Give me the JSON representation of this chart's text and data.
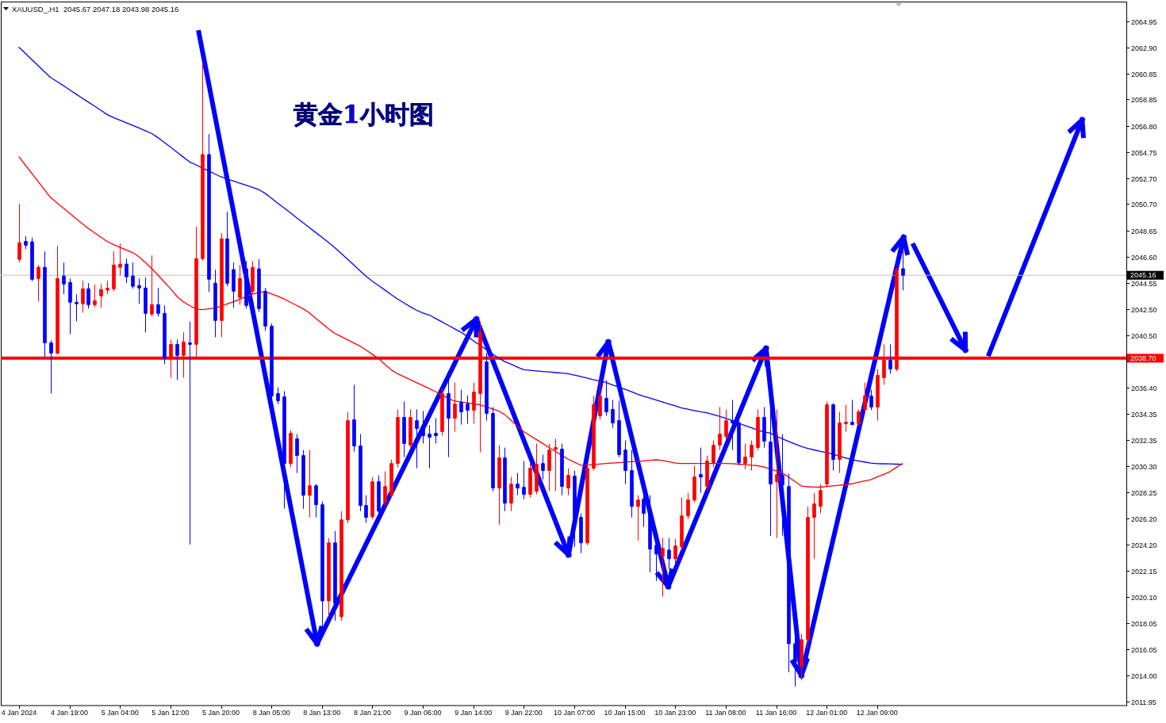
{
  "chart_data": {
    "type": "candlestick",
    "title": "黄金1小时图",
    "subtitle": "XAUUSD_,H1  2045.67 2047.18 2043.98 2045.16",
    "categories": [
      "4 Jan 2024",
      null,
      null,
      null,
      null,
      null,
      null,
      null,
      "4 Jan 19:00",
      null,
      null,
      null,
      null,
      null,
      null,
      null,
      "5 Jan 04:00",
      null,
      null,
      null,
      null,
      null,
      null,
      null,
      "5 Jan 12:00",
      null,
      null,
      null,
      null,
      null,
      null,
      null,
      "5 Jan 20:00",
      null,
      null,
      null,
      null,
      null,
      null,
      null,
      "8 Jan 05:00",
      null,
      null,
      null,
      null,
      null,
      null,
      null,
      "8 Jan 13:00",
      null,
      null,
      null,
      null,
      null,
      null,
      null,
      "8 Jan 21:00",
      null,
      null,
      null,
      null,
      null,
      null,
      null,
      "9 Jan 06:00",
      null,
      null,
      null,
      null,
      null,
      null,
      null,
      "9 Jan 14:00",
      null,
      null,
      null,
      null,
      null,
      null,
      null,
      "9 Jan 22:00",
      null,
      null,
      null,
      null,
      null,
      null,
      null,
      "10 Jan 07:00",
      null,
      null,
      null,
      null,
      null,
      null,
      null,
      "10 Jan 15:00",
      null,
      null,
      null,
      null,
      null,
      null,
      null,
      "10 Jan 23:00",
      null,
      null,
      null,
      null,
      null,
      null,
      null,
      "11 Jan 08:00",
      null,
      null,
      null,
      null,
      null,
      null,
      null,
      "11 Jan 16:00",
      null,
      null,
      null,
      null,
      null,
      null,
      null,
      "12 Jan 01:00",
      null,
      null,
      null,
      null,
      null,
      null,
      null,
      "12 Jan 09:00",
      null,
      null,
      null,
      null
    ],
    "ohlc": [
      [
        2046.4,
        2050.73,
        2046.15,
        2047.7
      ],
      [
        2047.8,
        2048.2,
        2047.2,
        2047.5
      ],
      [
        2047.76,
        2048.1,
        2044.7,
        2044.85
      ],
      [
        2044.91,
        2045.96,
        2043.12,
        2045.78
      ],
      [
        2045.78,
        2047.02,
        2038.73,
        2039.9
      ],
      [
        2039.9,
        2040.09,
        2035.95,
        2039.1
      ],
      [
        2039.1,
        2047.45,
        2038.98,
        2044.91
      ],
      [
        2045.1,
        2046.15,
        2043.68,
        2044.48
      ],
      [
        2044.6,
        2044.91,
        2040.58,
        2043.06
      ],
      [
        2043.06,
        2043.68,
        2041.57,
        2042.94
      ],
      [
        2042.94,
        2044.73,
        2042.25,
        2044.11
      ],
      [
        2044.11,
        2044.55,
        2042.56,
        2042.87
      ],
      [
        2042.87,
        2044.42,
        2042.69,
        2043.18
      ],
      [
        2043.55,
        2044.48,
        2042.62,
        2044.05
      ],
      [
        2044.0,
        2044.73,
        2043.68,
        2044.15
      ],
      [
        2044.11,
        2047.02,
        2043.92,
        2045.96
      ],
      [
        2045.78,
        2047.63,
        2045.16,
        2046.03
      ],
      [
        2046.03,
        2046.46,
        2044.55,
        2045.04
      ],
      [
        2045.1,
        2046.15,
        2044.11,
        2044.3
      ],
      [
        2044.36,
        2044.91,
        2042.94,
        2044.17
      ],
      [
        2044.17,
        2044.98,
        2040.71,
        2042.19
      ],
      [
        2042.13,
        2046.71,
        2041.95,
        2042.87
      ],
      [
        2042.87,
        2044.17,
        2041.95,
        2042.19
      ],
      [
        2042.19,
        2042.81,
        2038.23,
        2038.73
      ],
      [
        2038.73,
        2040.15,
        2037.18,
        2039.78
      ],
      [
        2039.78,
        2040.15,
        2037.0,
        2038.92
      ],
      [
        2038.92,
        2040.71,
        2037.18,
        2039.97
      ],
      [
        2039.9,
        2041.57,
        2024.19,
        2039.78
      ],
      [
        2039.78,
        2048.93,
        2038.73,
        2046.46
      ],
      [
        2046.46,
        2061.73,
        2046.3,
        2054.56
      ],
      [
        2054.56,
        2056.17,
        2043.86,
        2044.85
      ],
      [
        2044.54,
        2045.6,
        2040.34,
        2041.64
      ],
      [
        2041.64,
        2048.44,
        2040.34,
        2048.0
      ],
      [
        2048.0,
        2050.11,
        2044.3,
        2044.54
      ],
      [
        2045.6,
        2046.15,
        2042.62,
        2043.92
      ],
      [
        2043.43,
        2045.96,
        2042.87,
        2044.91
      ],
      [
        2045.66,
        2046.27,
        2042.56,
        2042.81
      ],
      [
        2043.92,
        2046.27,
        2043.68,
        2045.78
      ],
      [
        2045.66,
        2046.4,
        2042.3,
        2042.56
      ],
      [
        2043.92,
        2044.17,
        2040.83,
        2041.2
      ],
      [
        2041.2,
        2041.4,
        2035.45,
        2035.76
      ],
      [
        2035.95,
        2036.44,
        2035.14,
        2035.39
      ],
      [
        2035.7,
        2036.13,
        2026.98,
        2030.5
      ],
      [
        2030.5,
        2033.1,
        2030.2,
        2032.85
      ],
      [
        2032.42,
        2032.79,
        2029.76,
        2031.12
      ],
      [
        2031.12,
        2031.55,
        2026.98,
        2028.03
      ],
      [
        2028.03,
        2031.55,
        2026.3,
        2028.77
      ],
      [
        2028.77,
        2028.9,
        2026.3,
        2027.29
      ],
      [
        2027.29,
        2027.54,
        2017.83,
        2019.8
      ],
      [
        2019.8,
        2024.69,
        2018.57,
        2024.32
      ],
      [
        2024.32,
        2025.25,
        2018.26,
        2019.62
      ],
      [
        2018.57,
        2026.79,
        2018.26,
        2026.11
      ],
      [
        2026.11,
        2034.52,
        2025.86,
        2033.84
      ],
      [
        2033.91,
        2036.63,
        2031.43,
        2031.87
      ],
      [
        2031.87,
        2032.79,
        2026.79,
        2027.23
      ],
      [
        2027.23,
        2028.03,
        2025.86,
        2026.3
      ],
      [
        2026.36,
        2029.45,
        2026.17,
        2029.08
      ],
      [
        2029.08,
        2029.58,
        2026.48,
        2026.79
      ],
      [
        2027.47,
        2029.89,
        2027.1,
        2028.71
      ],
      [
        2028.03,
        2030.8,
        2027.85,
        2030.5
      ],
      [
        2030.5,
        2034.71,
        2030.2,
        2034.09
      ],
      [
        2034.09,
        2035.33,
        2031.0,
        2032.05
      ],
      [
        2031.93,
        2034.71,
        2031.74,
        2034.09
      ],
      [
        2033.84,
        2034.71,
        2030.13,
        2033.22
      ],
      [
        2033.22,
        2034.6,
        2032.05,
        2032.67
      ],
      [
        2032.79,
        2033.47,
        2030.13,
        2032.55
      ],
      [
        2032.85,
        2034.03,
        2032.05,
        2032.67
      ],
      [
        2032.98,
        2036.38,
        2032.67,
        2035.95
      ],
      [
        2035.95,
        2037.18,
        2031.0,
        2034.03
      ],
      [
        2034.03,
        2036.81,
        2032.98,
        2035.14
      ],
      [
        2035.26,
        2036.25,
        2033.53,
        2034.52
      ],
      [
        2035.14,
        2035.8,
        2033.6,
        2034.65
      ],
      [
        2034.65,
        2036.81,
        2033.6,
        2036.07
      ],
      [
        2035.95,
        2041.57,
        2031.37,
        2040.71
      ],
      [
        2038.42,
        2039.1,
        2033.84,
        2034.4
      ],
      [
        2034.4,
        2034.9,
        2028.34,
        2028.59
      ],
      [
        2028.59,
        2031.93,
        2025.74,
        2030.94
      ],
      [
        2030.94,
        2031.74,
        2026.79,
        2027.41
      ],
      [
        2027.41,
        2029.45,
        2026.79,
        2028.9
      ],
      [
        2028.9,
        2029.76,
        2028.03,
        2028.59
      ],
      [
        2028.65,
        2030.69,
        2027.72,
        2028.1
      ],
      [
        2028.1,
        2030.5,
        2027.85,
        2030.13
      ],
      [
        2028.34,
        2032.05,
        2028.1,
        2030.44
      ],
      [
        2030.5,
        2031.19,
        2029.27,
        2029.95
      ],
      [
        2029.95,
        2032.05,
        2028.34,
        2031.55
      ],
      [
        2031.6,
        2032.42,
        2028.34,
        2031.74
      ],
      [
        2031.62,
        2032.05,
        2028.03,
        2028.71
      ],
      [
        2028.59,
        2030.13,
        2028.03,
        2029.58
      ],
      [
        2029.51,
        2029.95,
        2024.01,
        2026.3
      ],
      [
        2026.3,
        2026.61,
        2023.52,
        2024.32
      ],
      [
        2024.32,
        2030.5,
        2024.14,
        2030.13
      ],
      [
        2030.13,
        2035.76,
        2029.95,
        2035.08
      ],
      [
        2034.21,
        2037.0,
        2033.91,
        2035.76
      ],
      [
        2035.58,
        2037.0,
        2034.21,
        2034.52
      ],
      [
        2034.71,
        2035.45,
        2033.28,
        2033.66
      ],
      [
        2033.84,
        2035.39,
        2031.0,
        2031.19
      ],
      [
        2031.55,
        2032.3,
        2028.9,
        2029.95
      ],
      [
        2029.95,
        2031.55,
        2026.3,
        2027.16
      ],
      [
        2027.16,
        2028.03,
        2024.5,
        2027.66
      ],
      [
        2027.72,
        2029.45,
        2025.56,
        2026.61
      ],
      [
        2026.61,
        2028.03,
        2022.03,
        2023.83
      ],
      [
        2024.13,
        2024.88,
        2021.35,
        2023.45
      ],
      [
        2023.27,
        2024.69,
        2020.13,
        2023.89
      ],
      [
        2023.76,
        2024.69,
        2022.28,
        2023.08
      ],
      [
        2023.08,
        2024.63,
        2022.65,
        2024.07
      ],
      [
        2024.01,
        2027.85,
        2023.76,
        2026.42
      ],
      [
        2026.42,
        2028.22,
        2026.17,
        2027.66
      ],
      [
        2027.66,
        2030.32,
        2027.47,
        2029.45
      ],
      [
        2029.64,
        2031.74,
        2028.22,
        2029.45
      ],
      [
        2028.71,
        2031.12,
        2028.34,
        2030.69
      ],
      [
        2030.56,
        2032.3,
        2030.2,
        2031.93
      ],
      [
        2031.93,
        2034.9,
        2031.55,
        2032.79
      ],
      [
        2032.61,
        2034.71,
        2032.36,
        2033.84
      ],
      [
        2033.84,
        2035.45,
        2031.55,
        2033.66
      ],
      [
        2033.66,
        2034.03,
        2030.38,
        2030.56
      ],
      [
        2030.5,
        2032.05,
        2030.07,
        2031.0
      ],
      [
        2031.0,
        2032.3,
        2029.95,
        2031.93
      ],
      [
        2031.74,
        2034.71,
        2031.55,
        2034.09
      ],
      [
        2034.09,
        2034.9,
        2031.74,
        2032.24
      ],
      [
        2032.18,
        2034.9,
        2024.88,
        2028.9
      ],
      [
        2029.08,
        2034.71,
        2024.69,
        2029.64
      ],
      [
        2029.58,
        2032.79,
        2024.88,
        2028.84
      ],
      [
        2028.71,
        2029.7,
        2014.24,
        2016.47
      ],
      [
        2016.47,
        2017.52,
        2013.13,
        2015.04
      ],
      [
        2014.67,
        2017.21,
        2013.62,
        2016.78
      ],
      [
        2016.78,
        2027.16,
        2016.09,
        2026.3
      ],
      [
        2026.3,
        2028.22,
        2023.08,
        2027.35
      ],
      [
        2027.16,
        2028.9,
        2026.61,
        2028.4
      ],
      [
        2028.9,
        2035.33,
        2028.65,
        2035.08
      ],
      [
        2035.08,
        2035.2,
        2029.95,
        2030.81
      ],
      [
        2030.81,
        2034.52,
        2029.76,
        2033.66
      ],
      [
        2033.6,
        2035.08,
        2032.98,
        2033.72
      ],
      [
        2033.72,
        2035.45,
        2033.47,
        2033.53
      ],
      [
        2033.6,
        2034.71,
        2033.41,
        2034.52
      ],
      [
        2034.71,
        2036.81,
        2034.52,
        2035.76
      ],
      [
        2035.76,
        2036.25,
        2034.65,
        2034.9
      ],
      [
        2034.9,
        2037.86,
        2033.84,
        2037.37
      ],
      [
        2037.18,
        2039.78,
        2036.63,
        2038.54
      ],
      [
        2038.54,
        2039.78,
        2037.49,
        2037.86
      ],
      [
        2037.86,
        2045.78,
        2037.68,
        2045.6
      ],
      [
        2045.67,
        2047.18,
        2043.98,
        2045.16
      ]
    ],
    "colors": [
      "#ff0000",
      "#0000ff",
      "#0000ff",
      "#ff0000",
      "#0000ff",
      "#0000ff",
      "#ff0000",
      "#0000ff",
      "#0000ff",
      "#0000ff",
      "#ff0000",
      "#0000ff",
      "#ff0000",
      "#ff0000",
      "#ff0000",
      "#ff0000",
      "#ff0000",
      "#0000ff",
      "#0000ff",
      "#0000ff",
      "#0000ff",
      "#ff0000",
      "#0000ff",
      "#0000ff",
      "#ff0000",
      "#0000ff",
      "#ff0000",
      "#0000ff",
      "#ff0000",
      "#ff0000",
      "#0000ff",
      "#0000ff",
      "#ff0000",
      "#0000ff",
      "#0000ff",
      "#ff0000",
      "#0000ff",
      "#ff0000",
      "#0000ff",
      "#0000ff",
      "#0000ff",
      "#0000ff",
      "#0000ff",
      "#ff0000",
      "#0000ff",
      "#0000ff",
      "#ff0000",
      "#0000ff",
      "#0000ff",
      "#ff0000",
      "#0000ff",
      "#ff0000",
      "#ff0000",
      "#0000ff",
      "#0000ff",
      "#0000ff",
      "#ff0000",
      "#0000ff",
      "#ff0000",
      "#ff0000",
      "#ff0000",
      "#0000ff",
      "#ff0000",
      "#0000ff",
      "#0000ff",
      "#0000ff",
      "#0000ff",
      "#ff0000",
      "#0000ff",
      "#ff0000",
      "#0000ff",
      "#0000ff",
      "#ff0000",
      "#ff0000",
      "#0000ff",
      "#0000ff",
      "#ff0000",
      "#0000ff",
      "#ff0000",
      "#0000ff",
      "#0000ff",
      "#ff0000",
      "#ff0000",
      "#0000ff",
      "#ff0000",
      "#ff0000",
      "#0000ff",
      "#ff0000",
      "#0000ff",
      "#0000ff",
      "#ff0000",
      "#ff0000",
      "#ff0000",
      "#0000ff",
      "#0000ff",
      "#0000ff",
      "#0000ff",
      "#0000ff",
      "#ff0000",
      "#0000ff",
      "#0000ff",
      "#0000ff",
      "#ff0000",
      "#0000ff",
      "#ff0000",
      "#ff0000",
      "#ff0000",
      "#ff0000",
      "#0000ff",
      "#ff0000",
      "#ff0000",
      "#ff0000",
      "#ff0000",
      "#0000ff",
      "#0000ff",
      "#ff0000",
      "#ff0000",
      "#ff0000",
      "#0000ff",
      "#0000ff",
      "#ff0000",
      "#0000ff",
      "#0000ff",
      "#0000ff",
      "#ff0000",
      "#ff0000",
      "#ff0000",
      "#ff0000",
      "#ff0000",
      "#0000ff",
      "#ff0000",
      "#ff0000",
      "#0000ff",
      "#ff0000",
      "#ff0000",
      "#0000ff",
      "#ff0000",
      "#ff0000",
      "#0000ff",
      "#ff0000",
      "#0000ff"
    ],
    "series": [
      {
        "type": "line",
        "color": "#0000ff",
        "values": [
          2062.91,
          2062.44,
          2061.97,
          2061.5,
          2061.03,
          2060.56,
          2060.25,
          2059.94,
          2059.61,
          2059.29,
          2058.96,
          2058.64,
          2058.32,
          2058.0,
          2057.67,
          2057.44,
          2057.23,
          2057.03,
          2056.83,
          2056.63,
          2056.42,
          2056.21,
          2055.88,
          2055.51,
          2055.14,
          2054.76,
          2054.38,
          2054.0,
          2053.77,
          2053.53,
          2053.3,
          2053.06,
          2052.83,
          2052.66,
          2052.5,
          2052.33,
          2052.17,
          2052.01,
          2051.84,
          2051.54,
          2051.16,
          2050.78,
          2050.4,
          2050.03,
          2049.64,
          2049.26,
          2048.88,
          2048.5,
          2048.12,
          2047.73,
          2047.34,
          2046.89,
          2046.44,
          2045.99,
          2045.53,
          2045.08,
          2044.7,
          2044.36,
          2044.01,
          2043.65,
          2043.31,
          2043.01,
          2042.71,
          2042.44,
          2042.22,
          2042.07,
          2041.8,
          2041.54,
          2041.27,
          2041.0,
          2040.74,
          2040.41,
          2040.07,
          2039.73,
          2039.39,
          2039.05,
          2038.71,
          2038.44,
          2038.23,
          2038.01,
          2037.8,
          2037.76,
          2037.71,
          2037.67,
          2037.63,
          2037.58,
          2037.54,
          2037.49,
          2037.39,
          2037.28,
          2037.16,
          2037.03,
          2036.92,
          2036.81,
          2036.63,
          2036.46,
          2036.29,
          2036.11,
          2035.91,
          2035.74,
          2035.59,
          2035.44,
          2035.29,
          2035.14,
          2034.99,
          2034.83,
          2034.73,
          2034.63,
          2034.53,
          2034.45,
          2034.31,
          2034.17,
          2034.02,
          2033.85,
          2033.66,
          2033.47,
          2033.3,
          2033.13,
          2032.96,
          2032.88,
          2032.64,
          2032.42,
          2032.22,
          2032.02,
          2031.83,
          2031.67,
          2031.56,
          2031.45,
          2031.35,
          2031.23,
          2031.08,
          2030.93,
          2030.79,
          2030.7,
          2030.62,
          2030.53,
          2030.49,
          2030.48,
          2030.47,
          2030.45,
          2030.44
        ]
      },
      {
        "type": "line",
        "color": "#ff0000",
        "values": [
          2054.38,
          2053.74,
          2053.11,
          2052.48,
          2051.85,
          2051.22,
          2050.81,
          2050.4,
          2050.0,
          2049.59,
          2049.19,
          2048.8,
          2048.46,
          2048.12,
          2047.78,
          2047.54,
          2047.34,
          2047.13,
          2046.93,
          2046.61,
          2046.16,
          2045.7,
          2045.19,
          2044.65,
          2044.12,
          2043.54,
          2043.11,
          2042.81,
          2042.54,
          2042.48,
          2042.54,
          2042.61,
          2042.75,
          2042.93,
          2043.1,
          2043.3,
          2043.5,
          2043.69,
          2043.82,
          2043.88,
          2043.71,
          2043.53,
          2043.31,
          2043.06,
          2042.81,
          2042.56,
          2042.24,
          2041.83,
          2041.42,
          2041.01,
          2040.65,
          2040.4,
          2040.15,
          2039.9,
          2039.66,
          2039.34,
          2039.01,
          2038.67,
          2038.21,
          2037.79,
          2037.49,
          2037.26,
          2037.03,
          2036.8,
          2036.57,
          2036.34,
          2036.1,
          2035.84,
          2035.58,
          2035.37,
          2035.3,
          2035.23,
          2035.15,
          2035.08,
          2034.92,
          2034.76,
          2034.6,
          2034.3,
          2033.86,
          2033.42,
          2032.98,
          2032.67,
          2032.37,
          2032.06,
          2031.75,
          2031.45,
          2031.15,
          2030.85,
          2030.61,
          2030.37,
          2030.36,
          2030.41,
          2030.46,
          2030.5,
          2030.54,
          2030.57,
          2030.61,
          2030.64,
          2030.67,
          2030.71,
          2030.75,
          2030.79,
          2030.74,
          2030.64,
          2030.53,
          2030.5,
          2030.5,
          2030.5,
          2030.5,
          2030.5,
          2030.5,
          2030.5,
          2030.5,
          2030.49,
          2030.45,
          2030.42,
          2030.37,
          2030.34,
          2030.24,
          2030.08,
          2029.92,
          2029.76,
          2029.43,
          2029.09,
          2028.75,
          2028.69,
          2028.67,
          2028.66,
          2028.71,
          2028.76,
          2028.81,
          2028.86,
          2028.92,
          2029.03,
          2029.14,
          2029.24,
          2029.45,
          2029.64,
          2029.86,
          2030.18,
          2030.5
        ]
      }
    ],
    "ylim": [
      2011.65,
      2066.35
    ],
    "yticks": [
      2064.95,
      {
        "value": 2062.9,
        "label": "2062.90"
      },
      2060.85,
      2058.85,
      {
        "value": 2056.8,
        "label": "2056.80"
      },
      2054.75,
      {
        "value": 2052.7,
        "label": "2052.70"
      },
      {
        "value": 2050.7,
        "label": "2050.70"
      },
      2048.65,
      {
        "value": 2046.6,
        "label": "2046.60"
      },
      2044.55,
      {
        "value": 2042.5,
        "label": "2042.50"
      },
      {
        "value": 2040.5,
        "label": "2040.50"
      },
      {
        "value": 2036.4,
        "label": "2036.40"
      },
      2034.35,
      2032.35,
      {
        "value": 2030.3,
        "label": "2030.30"
      },
      2028.25,
      {
        "value": 2026.2,
        "label": "2026.20"
      },
      {
        "value": 2024.2,
        "label": "2024.20"
      },
      2022.15,
      {
        "value": 2020.1,
        "label": "2020.10"
      },
      2018.05,
      2016.05,
      {
        "value": 2014,
        "label": "2014.00"
      },
      2011.95
    ],
    "ref_lines": [
      {
        "axis": "y",
        "value": 2038.7,
        "label": "2038.70",
        "color": "#ff0000"
      },
      {
        "axis": "y",
        "value": 2045.16,
        "label": "2045.16",
        "color": "#c0c0c0"
      }
    ]
  }
}
